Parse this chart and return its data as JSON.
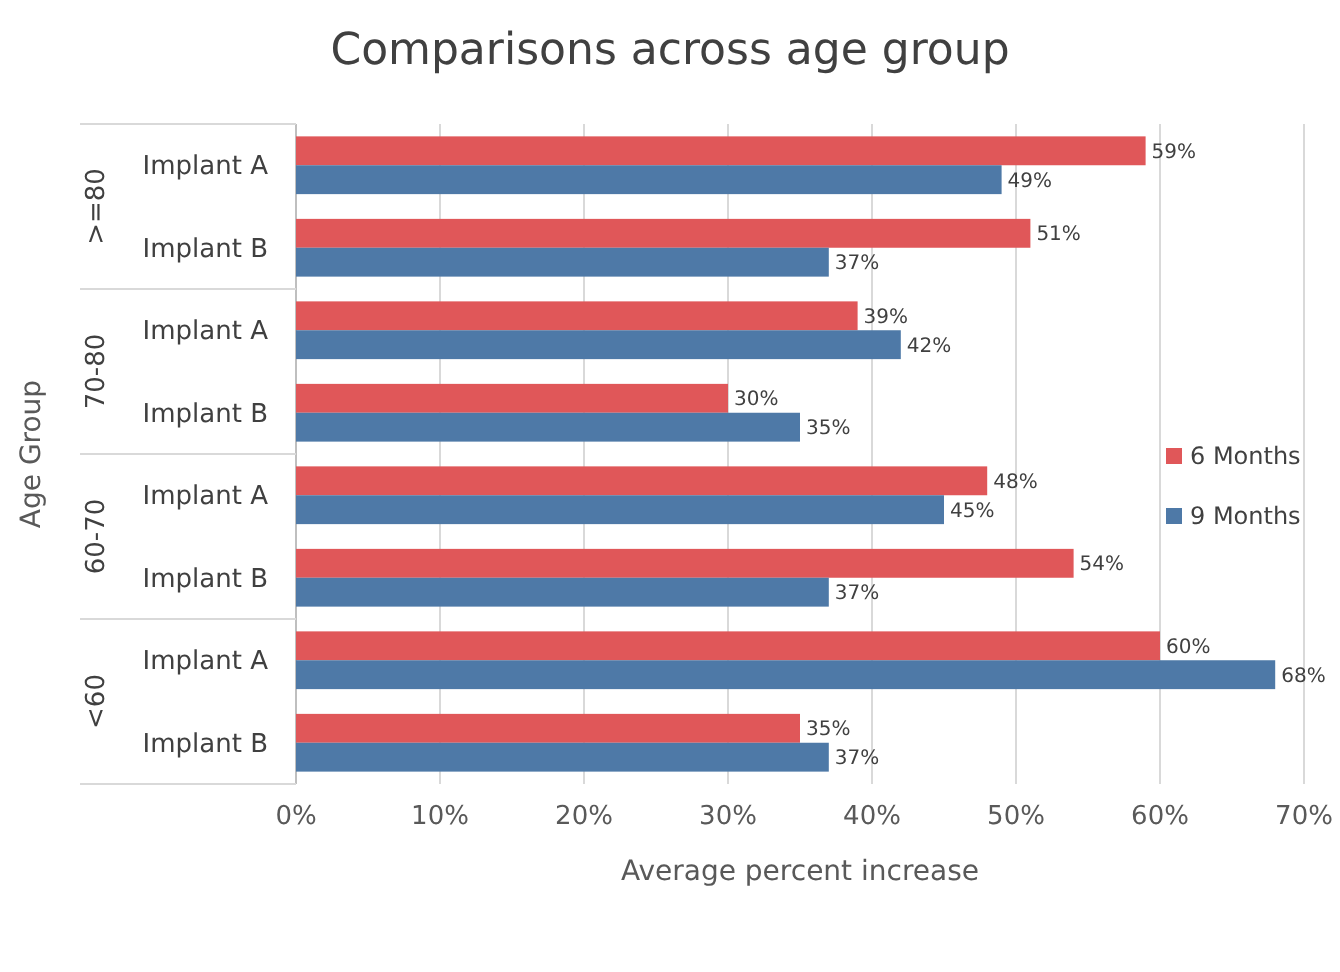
{
  "chart_data": {
    "type": "bar",
    "orientation": "horizontal",
    "title": "Comparisons across age group",
    "xlabel": "Average percent increase",
    "ylabel": "Age Group",
    "categories": [
      "Implant A",
      "Implant B",
      "Implant A",
      "Implant B",
      "Implant A",
      "Implant B",
      "Implant A",
      "Implant B"
    ],
    "annotations": [
      ">=80",
      "70-80",
      "60-70",
      "<60"
    ],
    "series": [
      {
        "name": "6 Months",
        "color": "#e05759",
        "values": [
          59,
          51,
          39,
          30,
          48,
          54,
          60,
          35
        ],
        "value_labels": [
          "59%",
          "51%",
          "39%",
          "30%",
          "48%",
          "54%",
          "60%",
          "35%"
        ]
      },
      {
        "name": "9 Months",
        "color": "#4e79a7",
        "values": [
          49,
          37,
          42,
          35,
          45,
          37,
          68,
          37
        ],
        "value_labels": [
          "49%",
          "37%",
          "42%",
          "35%",
          "45%",
          "37%",
          "68%",
          "37%"
        ]
      }
    ],
    "xlim": [
      0,
      70
    ],
    "xticks": [
      {
        "value": 0,
        "label": "0%"
      },
      {
        "value": 10,
        "label": "10%"
      },
      {
        "value": 20,
        "label": "20%"
      },
      {
        "value": 30,
        "label": "30%"
      },
      {
        "value": 40,
        "label": "40%"
      },
      {
        "value": 50,
        "label": "50%"
      },
      {
        "value": 60,
        "label": "60%"
      },
      {
        "value": 70,
        "label": "70%"
      }
    ],
    "grid": "x",
    "legend": "right"
  }
}
